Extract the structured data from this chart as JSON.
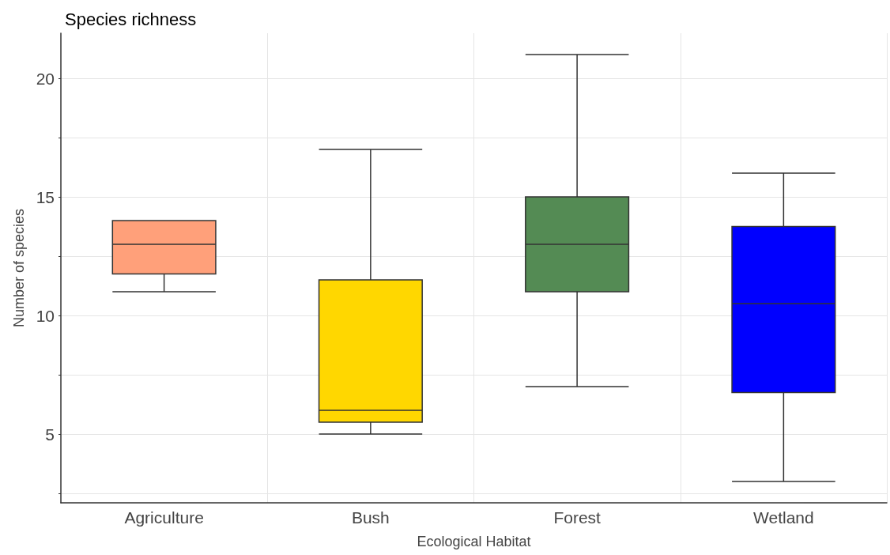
{
  "chart_data": {
    "type": "box",
    "title": "Species richness",
    "xlabel": "Ecological Habitat",
    "ylabel": "Number of species",
    "categories": [
      "Agriculture",
      "Bush",
      "Forest",
      "Wetland"
    ],
    "colors": [
      "#ffa07a",
      "#ffd700",
      "#548b54",
      "#0000ff"
    ],
    "boxes": [
      {
        "low": 11,
        "q1": 11.75,
        "median": 13,
        "q3": 14,
        "high": 14
      },
      {
        "low": 5,
        "q1": 5.5,
        "median": 6,
        "q3": 11.5,
        "high": 17
      },
      {
        "low": 7,
        "q1": 11,
        "median": 13,
        "q3": 15,
        "high": 21
      },
      {
        "low": 3,
        "q1": 6.75,
        "median": 10.5,
        "q3": 13.75,
        "high": 16
      }
    ],
    "ylim": [
      2.1,
      21.9
    ],
    "yticks": [
      {
        "value": 2.5,
        "label": null
      },
      5,
      {
        "value": 7.5,
        "label": null
      },
      10,
      {
        "value": 12.5,
        "label": null
      },
      15,
      {
        "value": 17.5,
        "label": null
      },
      20
    ],
    "grid": true
  }
}
